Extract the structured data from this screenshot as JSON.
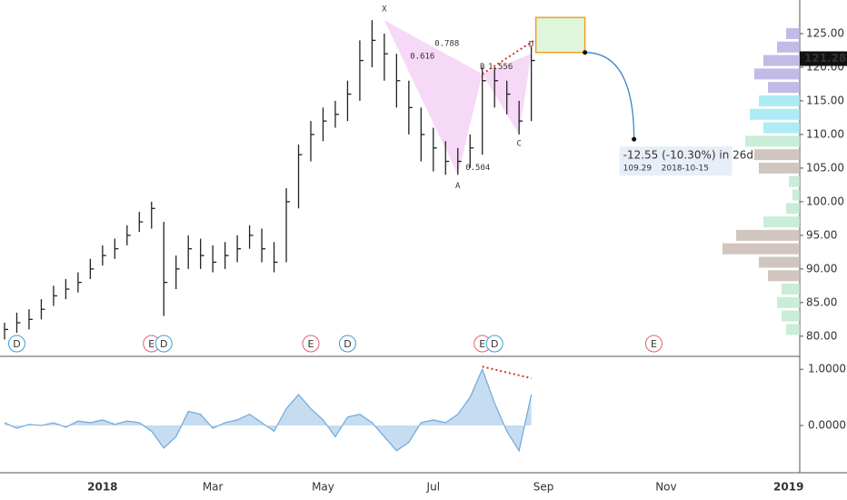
{
  "chart_data": [
    {
      "type": "ohlc",
      "categories": [
        null,
        null,
        null,
        null,
        null,
        null,
        null,
        null,
        "2018",
        null,
        null,
        null,
        null,
        null,
        null,
        null,
        null,
        "Mar",
        null,
        null,
        null,
        null,
        null,
        null,
        null,
        null,
        "May",
        null,
        null,
        null,
        null,
        null,
        null,
        null,
        null,
        "Jul",
        null,
        null,
        null,
        null,
        null,
        null,
        null,
        null,
        "Sep",
        null,
        null,
        null,
        null,
        null,
        null,
        null,
        null,
        null,
        "Nov",
        null,
        null,
        null,
        null,
        null,
        null,
        null,
        null,
        null,
        "2019"
      ],
      "high": [
        82,
        83.5,
        84,
        85.5,
        87.5,
        88.5,
        89.5,
        91.5,
        93.5,
        94.5,
        96.5,
        98.5,
        100,
        97,
        92,
        95,
        94.5,
        93.5,
        94,
        95,
        96.5,
        96,
        94,
        102,
        108.5,
        112,
        114,
        115,
        118,
        124,
        127,
        125,
        122,
        118,
        114,
        111,
        109,
        108,
        110,
        120,
        120,
        118,
        115,
        123,
        null,
        null,
        null,
        null,
        null,
        null,
        null,
        null,
        null,
        null,
        null,
        null,
        null,
        null,
        null,
        null,
        null,
        null,
        null,
        null,
        null
      ],
      "low": [
        79.5,
        80.5,
        81,
        82.5,
        84.5,
        85.5,
        86.5,
        88.5,
        90.5,
        91.5,
        93.5,
        95.5,
        96,
        83,
        87,
        90,
        90,
        89.5,
        90,
        91,
        93,
        91,
        89.5,
        91,
        99,
        106,
        109,
        111,
        112,
        115,
        120,
        118,
        114,
        110,
        106,
        104.5,
        104,
        104,
        105,
        107,
        114,
        113,
        110,
        112,
        null,
        null,
        null,
        null,
        null,
        null,
        null,
        null,
        null,
        null,
        null,
        null,
        null,
        null,
        null,
        null,
        null,
        null,
        null,
        null,
        null
      ],
      "close": [
        81,
        82,
        82.5,
        84,
        86,
        87,
        88,
        90,
        92,
        93,
        95,
        97,
        99,
        88,
        90,
        93,
        92,
        91,
        92,
        93,
        95,
        93,
        91,
        100,
        107,
        110,
        112,
        113,
        116,
        121,
        124,
        122,
        118,
        114,
        110,
        108,
        106,
        106,
        108,
        118,
        118,
        116,
        112,
        121,
        null,
        null,
        null,
        null,
        null,
        null,
        null,
        null,
        null,
        null,
        null,
        null,
        null,
        null,
        null,
        null,
        null,
        null,
        null,
        null,
        null
      ],
      "color": "#222222",
      "ylim": [
        77,
        130
      ],
      "yticks": [
        {
          "value": 80,
          "label": "80.00"
        },
        {
          "value": 85,
          "label": "85.00"
        },
        {
          "value": 90,
          "label": "90.00"
        },
        {
          "value": 95,
          "label": "95.00"
        },
        {
          "value": 100,
          "label": "100.00"
        },
        {
          "value": 105,
          "label": "105.00"
        },
        {
          "value": 110,
          "label": "110.00"
        },
        {
          "value": 115,
          "label": "115.00"
        },
        {
          "value": 120,
          "label": "120.00"
        },
        {
          "value": 125,
          "label": "125.00"
        }
      ],
      "last": 121.28,
      "events": [
        {
          "label": "D",
          "index": 1
        },
        {
          "label": "E",
          "index": 12
        },
        {
          "label": "D",
          "index": 13
        },
        {
          "label": "E",
          "index": 25
        },
        {
          "label": "D",
          "index": 28
        },
        {
          "label": "E",
          "index": 39
        },
        {
          "label": "D",
          "index": 40
        },
        {
          "label": "E",
          "index": 53
        }
      ],
      "pattern": {
        "points": [
          {
            "label": "X",
            "index": 31,
            "value": 127
          },
          {
            "label": "A",
            "index": 37,
            "value": 104
          },
          {
            "label": "B",
            "index": 39,
            "value": 119
          },
          {
            "label": "C",
            "index": 42,
            "value": 110
          },
          {
            "label": "D",
            "index": 43,
            "value": 122
          }
        ],
        "ratios": [
          0.788,
          0.616,
          1.556,
          0.504
        ],
        "color": "#f4d0f4"
      },
      "projection": {
        "box": [
          122.2,
          127.4
        ],
        "change": "-12.55 (-10.30%) in 26d",
        "target": 109.29,
        "date": "2018-10-15"
      },
      "volume_profile": {
        "prices": [
          81,
          83,
          85,
          87,
          89,
          91,
          93,
          95,
          97,
          99,
          101,
          103,
          105,
          107,
          109,
          111,
          113,
          115,
          117,
          119,
          121,
          123,
          125
        ],
        "values": [
          15,
          20,
          25,
          20,
          35,
          45,
          85,
          70,
          40,
          15,
          8,
          12,
          45,
          50,
          60,
          40,
          55,
          45,
          35,
          50,
          40,
          25,
          15
        ],
        "colors": [
          "#bfead0",
          "#bfead0",
          "#bfead0",
          "#bfead0",
          "#c9bcb4",
          "#c9bcb4",
          "#c9bcb4",
          "#c9bcb4",
          "#bfead0",
          "#bfead0",
          "#bfead0",
          "#bfead0",
          "#c9bcb4",
          "#c9bcb4",
          "#bfead0",
          "#9fe9f2",
          "#9fe9f2",
          "#9fe9f2",
          "#b9aee0",
          "#b9aee0",
          "#b9aee0",
          "#b9aee0",
          "#b9aee0"
        ]
      }
    },
    {
      "type": "area",
      "values": [
        0.05,
        -0.05,
        0.02,
        0,
        0.05,
        -0.03,
        0.08,
        0.05,
        0.1,
        0.02,
        0.08,
        0.05,
        -0.1,
        -0.4,
        -0.2,
        0.25,
        0.2,
        -0.05,
        0.05,
        0.1,
        0.2,
        0.05,
        -0.1,
        0.3,
        0.55,
        0.3,
        0.1,
        -0.2,
        0.15,
        0.2,
        0.05,
        -0.2,
        -0.45,
        -0.3,
        0.05,
        0.1,
        0.05,
        0.2,
        0.5,
        1.0,
        0.4,
        -0.1,
        -0.45,
        0.55,
        null,
        null,
        null,
        null,
        null,
        null,
        null,
        null,
        null,
        null,
        null,
        null,
        null,
        null,
        null,
        null,
        null,
        null,
        null,
        null,
        null
      ],
      "color": "#6fa8dc",
      "ylim": [
        -0.84,
        1.23
      ],
      "yticks": [
        {
          "value": 0,
          "label": "0.0000"
        },
        {
          "value": 1,
          "label": "1.0000"
        }
      ]
    }
  ]
}
